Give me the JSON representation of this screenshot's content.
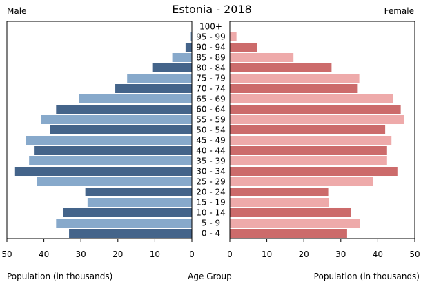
{
  "chart_data": {
    "type": "bar",
    "title": "Estonia - 2018",
    "left_label": "Male",
    "right_label": "Female",
    "xlabel_left": "Population (in thousands)",
    "xlabel_center": "Age Group",
    "xlabel_right": "Population (in thousands)",
    "xlim": [
      0,
      50
    ],
    "ticks_left": [
      "50",
      "40",
      "30",
      "20",
      "10",
      "0"
    ],
    "ticks_right": [
      "0",
      "10",
      "20",
      "30",
      "40",
      "50"
    ],
    "categories": [
      "100+",
      "95 - 99",
      "90 - 94",
      "85 - 89",
      "80 - 84",
      "75 - 79",
      "70 - 74",
      "65 - 69",
      "60 - 64",
      "55 - 59",
      "50 - 54",
      "45 - 49",
      "40 - 44",
      "35 - 39",
      "30 - 34",
      "25 - 29",
      "20 - 24",
      "15 - 19",
      "10 - 14",
      "5 - 9",
      "0 - 4"
    ],
    "series": [
      {
        "name": "Male",
        "values": [
          0.02,
          0.3,
          1.7,
          5.3,
          10.7,
          17.5,
          20.7,
          30.5,
          36.7,
          40.7,
          38.3,
          44.8,
          42.7,
          44.0,
          47.8,
          41.8,
          28.8,
          28.2,
          34.8,
          36.7,
          33.2
        ]
      },
      {
        "name": "Female",
        "values": [
          0.05,
          1.8,
          7.4,
          17.2,
          27.5,
          35.0,
          34.4,
          44.2,
          46.2,
          47.1,
          42.0,
          43.7,
          42.5,
          42.5,
          45.3,
          38.7,
          26.6,
          26.7,
          32.8,
          35.1,
          31.7
        ]
      }
    ],
    "colors": {
      "male_even": "#44648a",
      "male_odd": "#87a9cb",
      "female_even": "#cc6b6b",
      "female_odd": "#eeaaaa"
    },
    "grid": false
  }
}
